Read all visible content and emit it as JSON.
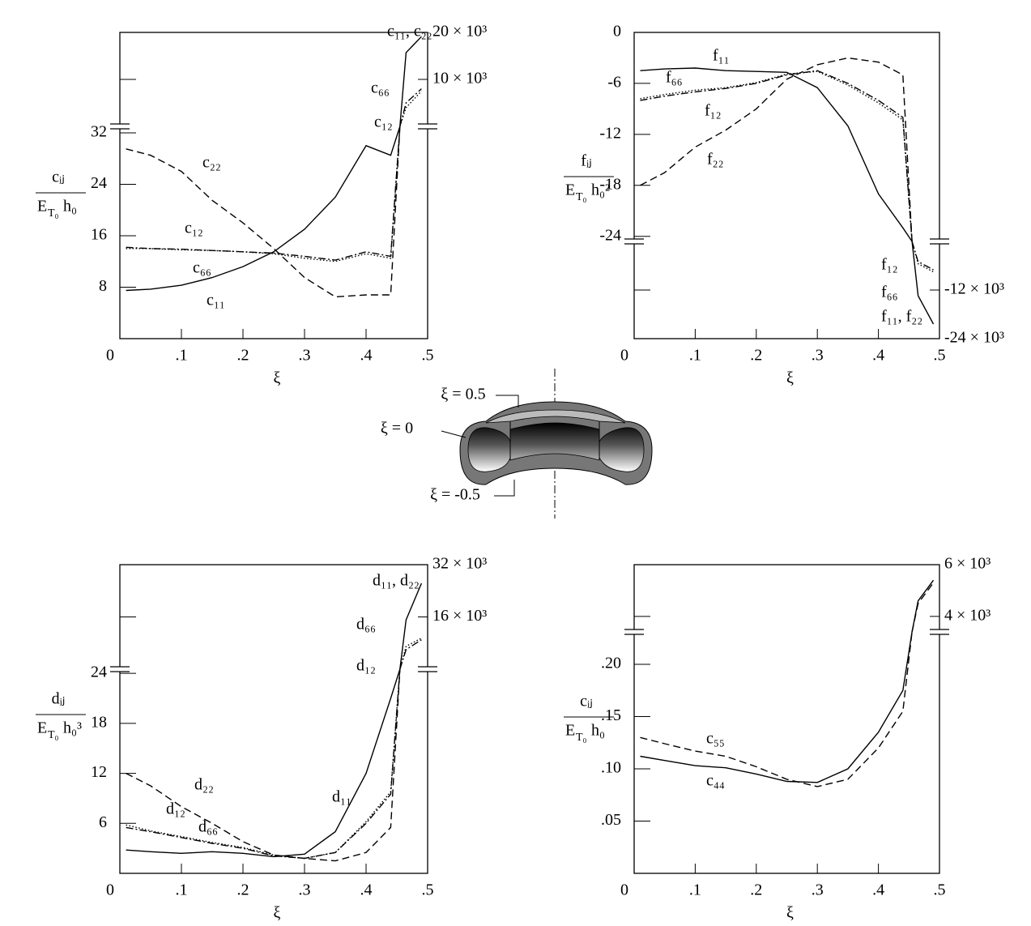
{
  "chart_data": [
    {
      "type": "line",
      "xlabel": "ξ",
      "ylabel": {
        "top": "cᵢⱼ",
        "bottom": [
          "E",
          "T₀",
          "h₀"
        ]
      },
      "x": [
        0.01,
        0.05,
        0.1,
        0.15,
        0.2,
        0.25,
        0.3,
        0.35,
        0.4,
        0.44,
        0.455,
        0.465,
        0.49
      ],
      "xlim": [
        0,
        0.5
      ],
      "xticks": [
        {
          "value": 0,
          "label": "0"
        },
        {
          "value": 0.1,
          "label": ".1"
        },
        {
          "value": 0.2,
          "label": ".2"
        },
        {
          "value": 0.3,
          "label": ".3"
        },
        {
          "value": 0.4,
          "label": ".4"
        },
        {
          "value": 0.5,
          "label": ".5"
        }
      ],
      "ylim": [
        0,
        33
      ],
      "yticks": [
        8,
        16,
        24,
        32
      ],
      "y2lim": [
        0,
        20000
      ],
      "y2ticks": [
        {
          "value": 10000,
          "label": "10 × 10³"
        },
        {
          "value": 20000,
          "label": "20 × 10³"
        }
      ],
      "series": [
        {
          "name": "c₁₁",
          "color": "#000000",
          "style": "solid",
          "values": [
            7.5,
            7.7,
            8.3,
            9.5,
            11.2,
            13.5,
            17,
            22,
            30,
            28.5,
            33,
            null,
            null
          ]
        },
        {
          "name": "c₂₂",
          "color": "#000000",
          "style": "dashed",
          "values": [
            29.5,
            28.5,
            26,
            21.5,
            18,
            14,
            9.5,
            6.5,
            6.8,
            6.8,
            33,
            null,
            null
          ]
        },
        {
          "name": "c₁₂",
          "color": "#000000",
          "style": "dotted",
          "values": [
            14,
            14,
            13.8,
            13.7,
            13.5,
            13.2,
            12.5,
            12,
            13.2,
            12.5,
            33,
            null,
            null
          ]
        },
        {
          "name": "c₆₆",
          "color": "#000000",
          "style": "dashdot",
          "values": [
            14.2,
            14,
            13.9,
            13.7,
            13.5,
            13.3,
            12.8,
            12.2,
            13.5,
            12.8,
            33,
            null,
            null
          ]
        },
        {
          "name": "c₁₁, c₂₂",
          "color": "#000000",
          "style": "solid",
          "axis": "y2",
          "values": [
            null,
            null,
            null,
            null,
            null,
            null,
            null,
            null,
            null,
            null,
            0,
            15700,
            19100
          ]
        },
        {
          "name": "c₆₆",
          "color": "#000000",
          "style": "dashdot",
          "axis": "y2",
          "values": [
            null,
            null,
            null,
            null,
            null,
            null,
            null,
            null,
            null,
            null,
            0,
            5000,
            8000
          ]
        },
        {
          "name": "c₁₂",
          "color": "#000000",
          "style": "dotted",
          "axis": "y2",
          "values": [
            null,
            null,
            null,
            null,
            null,
            null,
            null,
            null,
            null,
            null,
            0,
            4000,
            7500
          ]
        }
      ]
    },
    {
      "type": "line",
      "xlabel": "ξ",
      "ylabel": {
        "top": "fᵢⱼ",
        "bottom": [
          "E",
          "T₀",
          "h₀²"
        ]
      },
      "x": [
        0.01,
        0.05,
        0.1,
        0.15,
        0.2,
        0.25,
        0.3,
        0.35,
        0.4,
        0.44,
        0.455,
        0.465,
        0.49
      ],
      "xlim": [
        0,
        0.5
      ],
      "xticks": [
        {
          "value": 0,
          "label": "0"
        },
        {
          "value": 0.1,
          "label": ".1"
        },
        {
          "value": 0.2,
          "label": ".2"
        },
        {
          "value": 0.3,
          "label": ".3"
        },
        {
          "value": 0.4,
          "label": ".4"
        },
        {
          "value": 0.5,
          "label": ".5"
        }
      ],
      "ylim": [
        -24.6,
        0
      ],
      "yticks": [
        0,
        -6,
        -12,
        -18,
        -24
      ],
      "y2lim": [
        -24000,
        0
      ],
      "y2ticks": [
        {
          "value": -12000,
          "label": "-12 × 10³"
        },
        {
          "value": -24000,
          "label": "-24 × 10³"
        }
      ],
      "series": [
        {
          "name": "f₁₁",
          "color": "#000000",
          "style": "solid",
          "values": [
            -4.5,
            -4.3,
            -4.2,
            -4.5,
            -4.6,
            -4.7,
            -6.5,
            -11,
            -19,
            -23,
            -24.6,
            null,
            null
          ]
        },
        {
          "name": "f₂₂",
          "color": "#000000",
          "style": "dashed",
          "values": [
            -18,
            -16.5,
            -13.5,
            -11.5,
            -9,
            -5.5,
            -3.8,
            -3,
            -3.5,
            -5,
            -24.6,
            null,
            null
          ]
        },
        {
          "name": "f₁₂",
          "color": "#000000",
          "style": "dashdot",
          "values": [
            -8,
            -7.5,
            -7,
            -6.6,
            -6,
            -5,
            -4.5,
            -6,
            -8,
            -10,
            -24.6,
            null,
            null
          ]
        },
        {
          "name": "f₆₆",
          "color": "#000000",
          "style": "dotted",
          "values": [
            -7.8,
            -7.3,
            -6.8,
            -6.5,
            -5.9,
            -4.9,
            -4.6,
            -6.2,
            -8.3,
            -10.3,
            -24.6,
            null,
            null
          ]
        },
        {
          "name": "f₁₁, f₂₂",
          "color": "#000000",
          "style": "solid",
          "axis": "y2",
          "values": [
            null,
            null,
            null,
            null,
            null,
            null,
            null,
            null,
            null,
            null,
            0,
            -13400,
            -20400
          ]
        },
        {
          "name": "f₁₂",
          "color": "#000000",
          "style": "dashdot",
          "axis": "y2",
          "values": [
            null,
            null,
            null,
            null,
            null,
            null,
            null,
            null,
            null,
            null,
            0,
            -5000,
            -7000
          ]
        },
        {
          "name": "f₆₆",
          "color": "#000000",
          "style": "dotted",
          "axis": "y2",
          "values": [
            null,
            null,
            null,
            null,
            null,
            null,
            null,
            null,
            null,
            null,
            0,
            -5500,
            -7500
          ]
        }
      ]
    },
    {
      "type": "line",
      "xlabel": "ξ",
      "ylabel": {
        "top": "dᵢⱼ",
        "bottom": [
          "E",
          "T₀",
          "h₀³"
        ]
      },
      "x": [
        0.01,
        0.05,
        0.1,
        0.15,
        0.2,
        0.25,
        0.3,
        0.35,
        0.4,
        0.44,
        0.455,
        0.465,
        0.49
      ],
      "xlim": [
        0,
        0.5
      ],
      "xticks": [
        {
          "value": 0,
          "label": "0"
        },
        {
          "value": 0.1,
          "label": ".1"
        },
        {
          "value": 0.2,
          "label": ".2"
        },
        {
          "value": 0.3,
          "label": ".3"
        },
        {
          "value": 0.4,
          "label": ".4"
        },
        {
          "value": 0.5,
          "label": ".5"
        }
      ],
      "ylim": [
        0,
        24.5
      ],
      "yticks": [
        6,
        12,
        18,
        24
      ],
      "y2lim": [
        0,
        32000
      ],
      "y2ticks": [
        {
          "value": 16000,
          "label": "16 × 10³"
        },
        {
          "value": 32000,
          "label": "32 × 10³"
        }
      ],
      "series": [
        {
          "name": "d₁₁",
          "color": "#000000",
          "style": "solid",
          "values": [
            2.8,
            2.6,
            2.4,
            2.6,
            2.4,
            2,
            2.3,
            5,
            12,
            21,
            24.5,
            null,
            null
          ]
        },
        {
          "name": "d₂₂",
          "color": "#000000",
          "style": "dashed",
          "values": [
            12,
            10.5,
            8,
            6,
            3.8,
            2.2,
            1.8,
            1.5,
            2.5,
            5.5,
            24.5,
            null,
            null
          ]
        },
        {
          "name": "d₁₂",
          "color": "#000000",
          "style": "dashdot",
          "values": [
            5.5,
            5,
            4.3,
            3.6,
            3,
            2.1,
            1.8,
            2.5,
            6,
            9.5,
            24.5,
            null,
            null
          ]
        },
        {
          "name": "d₆₆",
          "color": "#000000",
          "style": "dotted",
          "values": [
            5.8,
            5.1,
            4.4,
            3.7,
            3.1,
            2.2,
            1.8,
            2.5,
            6.2,
            9.8,
            24.5,
            null,
            null
          ]
        },
        {
          "name": "d₁₁, d₂₂",
          "color": "#000000",
          "style": "solid",
          "axis": "y2",
          "values": [
            null,
            null,
            null,
            null,
            null,
            null,
            null,
            null,
            null,
            null,
            0,
            15100,
            26300
          ]
        },
        {
          "name": "d₆₆",
          "color": "#000000",
          "style": "dotted",
          "axis": "y2",
          "values": [
            null,
            null,
            null,
            null,
            null,
            null,
            null,
            null,
            null,
            null,
            0,
            7000,
            9500
          ]
        },
        {
          "name": "d₁₂",
          "color": "#000000",
          "style": "dashdot",
          "axis": "y2",
          "values": [
            null,
            null,
            null,
            null,
            null,
            null,
            null,
            null,
            null,
            null,
            0,
            6000,
            9000
          ]
        }
      ]
    },
    {
      "type": "line",
      "xlabel": "ξ",
      "ylabel": {
        "top": "cᵢⱼ",
        "bottom": [
          "E",
          "T₀",
          "h₀"
        ]
      },
      "x": [
        0.01,
        0.05,
        0.1,
        0.15,
        0.2,
        0.25,
        0.3,
        0.35,
        0.4,
        0.44,
        0.455,
        0.465,
        0.49
      ],
      "xlim": [
        0,
        0.5
      ],
      "xticks": [
        {
          "value": 0,
          "label": "0"
        },
        {
          "value": 0.1,
          "label": ".1"
        },
        {
          "value": 0.2,
          "label": ".2"
        },
        {
          "value": 0.3,
          "label": ".3"
        },
        {
          "value": 0.4,
          "label": ".4"
        },
        {
          "value": 0.5,
          "label": ".5"
        }
      ],
      "ylim": [
        0,
        0.231
      ],
      "yticks": [
        {
          "value": 0.05,
          "label": ".05"
        },
        {
          "value": 0.1,
          "label": ".10"
        },
        {
          "value": 0.15,
          "label": ".15"
        },
        {
          "value": 0.2,
          "label": ".20"
        }
      ],
      "y2lim": [
        3400,
        6000
      ],
      "y2ticks": [
        {
          "value": 4000,
          "label": "4 × 10³"
        },
        {
          "value": 6000,
          "label": "6 × 10³"
        }
      ],
      "series": [
        {
          "name": "c₄₄",
          "color": "#000000",
          "style": "solid",
          "values": [
            0.112,
            0.108,
            0.103,
            0.101,
            0.095,
            0.088,
            0.087,
            0.1,
            0.135,
            0.175,
            0.231,
            null,
            null
          ]
        },
        {
          "name": "c₅₅",
          "color": "#000000",
          "style": "dashed",
          "values": [
            0.13,
            0.124,
            0.117,
            0.112,
            0.102,
            0.09,
            0.083,
            0.09,
            0.12,
            0.155,
            0.231,
            null,
            null
          ]
        },
        {
          "color": "#000000",
          "style": "solid",
          "axis": "y2",
          "values": [
            null,
            null,
            null,
            null,
            null,
            null,
            null,
            null,
            null,
            null,
            3400,
            4600,
            5400
          ]
        },
        {
          "color": "#000000",
          "style": "dashed",
          "axis": "y2",
          "values": [
            null,
            null,
            null,
            null,
            null,
            null,
            null,
            null,
            null,
            null,
            3400,
            4500,
            5300
          ]
        }
      ]
    }
  ],
  "diagram": {
    "labels": [
      "ξ = 0.5",
      "ξ = 0",
      "ξ = -0.5"
    ]
  }
}
